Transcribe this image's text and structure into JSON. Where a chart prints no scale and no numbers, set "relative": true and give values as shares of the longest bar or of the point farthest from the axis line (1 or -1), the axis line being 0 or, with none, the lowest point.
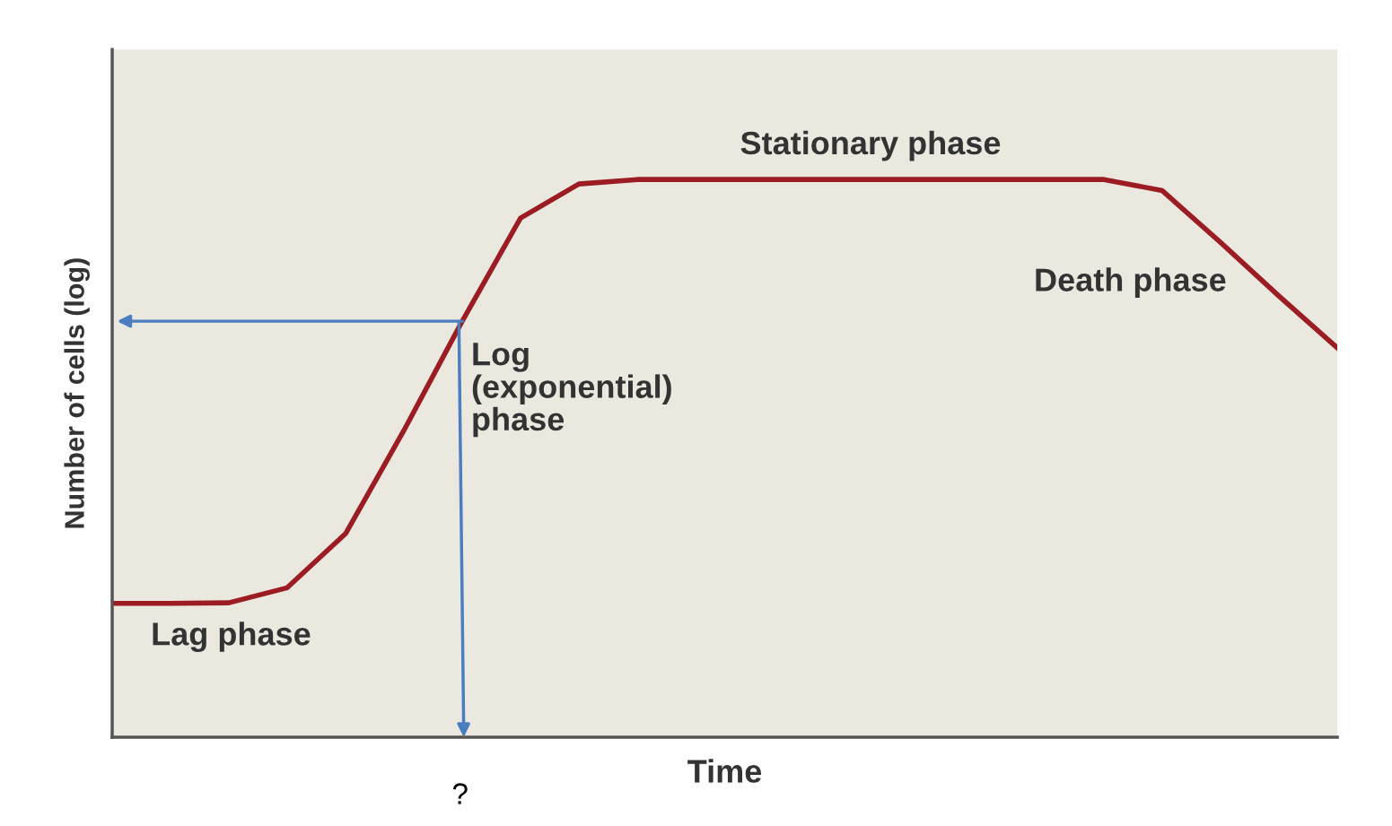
{
  "chart_data": {
    "type": "line",
    "relative": true,
    "xlabel": "Time",
    "ylabel": "Number of cells (log)",
    "categories": [
      null,
      null,
      null,
      null,
      null,
      null,
      null,
      null,
      null,
      null,
      null,
      null,
      null,
      null,
      null,
      null,
      null,
      null,
      null,
      null,
      null,
      null
    ],
    "series": [
      {
        "color": "#9b1c22",
        "values": [
          0.24,
          0.24,
          0.241,
          0.268,
          0.365,
          0.55,
          0.746,
          0.931,
          0.992,
          1,
          1,
          1,
          1,
          1,
          1,
          1,
          1,
          1,
          0.98,
          0.887,
          0.791,
          0.698
        ]
      }
    ],
    "annotations": [
      "Stationary phase",
      "Death phase",
      "Log\n(exponential)\nphase",
      "Lag phase",
      "?"
    ],
    "grid": false,
    "legend": false,
    "marker": "none",
    "line_style": "solid"
  }
}
